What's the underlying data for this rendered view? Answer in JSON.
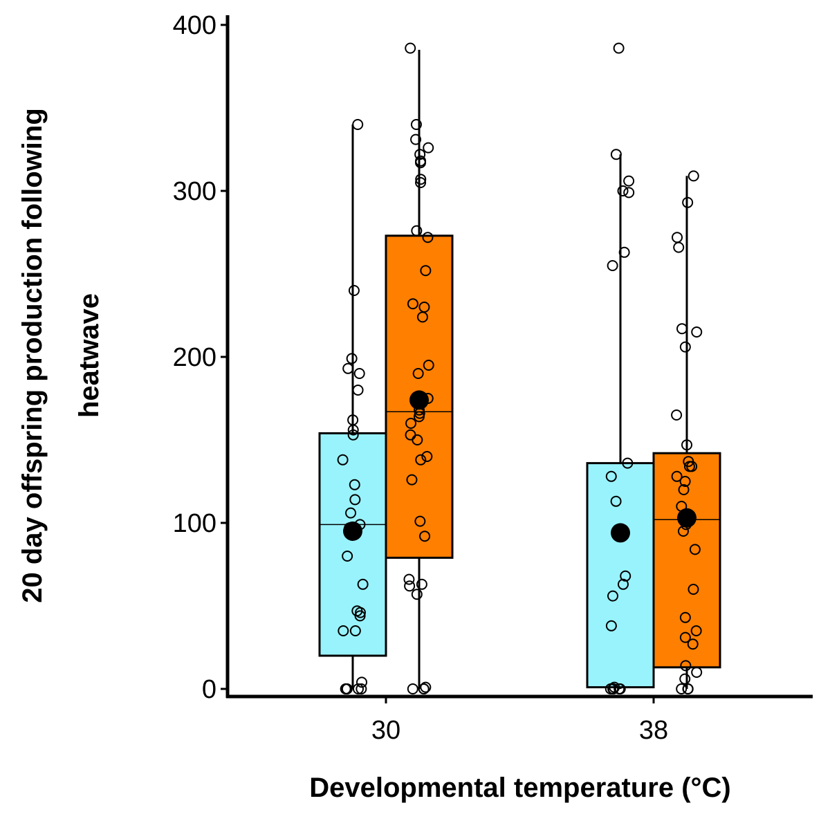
{
  "chart_data": {
    "type": "box",
    "xlabel": "Developmental temperature (°C)",
    "ylabel_lines": [
      "20 day offspring production following",
      "heatwave"
    ],
    "ylim": [
      0,
      400
    ],
    "yticks": [
      "0",
      "100",
      "200",
      "300",
      "400"
    ],
    "categories": [
      "30",
      "38"
    ],
    "legend": false,
    "grid": false,
    "groups": [
      {
        "category": "30",
        "color": "#99f3fc",
        "q1": 20,
        "median": 99,
        "q3": 154,
        "min": 0,
        "max": 340,
        "mean": 95,
        "points": [
          340,
          240,
          199,
          193,
          190,
          180,
          162,
          156,
          153,
          138,
          123,
          114,
          106,
          99,
          97,
          95,
          80,
          63,
          47,
          46,
          44,
          35,
          35,
          4,
          0,
          0,
          0,
          0,
          0
        ]
      },
      {
        "category": "30",
        "color": "#ff7f00",
        "q1": 79,
        "median": 167,
        "q3": 273,
        "min": 0,
        "max": 385,
        "mean": 174,
        "points": [
          386,
          340,
          331,
          326,
          322,
          318,
          317,
          307,
          305,
          276,
          272,
          252,
          232,
          230,
          224,
          195,
          190,
          175,
          168,
          166,
          164,
          160,
          153,
          150,
          140,
          138,
          126,
          101,
          92,
          66,
          63,
          62,
          57,
          0,
          0,
          0,
          1
        ]
      },
      {
        "category": "38",
        "color": "#99f3fc",
        "q1": 1,
        "median": 1,
        "q3": 136,
        "min": 0,
        "max": 322,
        "mean": 94,
        "points": [
          386,
          322,
          306,
          300,
          299,
          263,
          255,
          136,
          128,
          113,
          68,
          63,
          56,
          38,
          1,
          0,
          0,
          0,
          0,
          0
        ]
      },
      {
        "category": "38",
        "color": "#ff7f00",
        "q1": 13,
        "median": 102,
        "q3": 142,
        "min": 0,
        "max": 309,
        "mean": 103,
        "points": [
          309,
          293,
          272,
          266,
          217,
          215,
          206,
          165,
          147,
          137,
          134,
          134,
          128,
          125,
          120,
          110,
          99,
          95,
          84,
          60,
          43,
          35,
          31,
          27,
          14,
          10,
          6,
          0,
          0,
          0
        ]
      }
    ]
  }
}
